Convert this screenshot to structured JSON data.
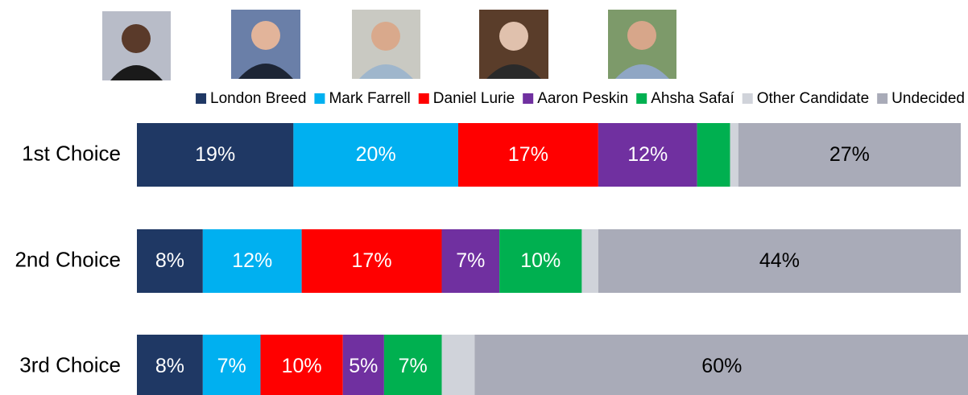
{
  "chart_data": {
    "type": "stacked-bar-horizontal",
    "categories": [
      "1st Choice",
      "2nd Choice",
      "3rd Choice"
    ],
    "xlim": [
      0,
      100
    ],
    "legend": "top",
    "series": [
      {
        "name": "London Breed",
        "color": "#1f3864",
        "values": [
          19,
          8,
          8
        ],
        "value_labels": [
          "19%",
          "8%",
          "8%"
        ]
      },
      {
        "name": "Mark Farrell",
        "color": "#00b0f0",
        "values": [
          20,
          12,
          7
        ],
        "value_labels": [
          "20%",
          "12%",
          "7%"
        ]
      },
      {
        "name": "Daniel Lurie",
        "color": "#ff0000",
        "values": [
          17,
          17,
          10
        ],
        "value_labels": [
          "17%",
          "17%",
          "10%"
        ]
      },
      {
        "name": "Aaron Peskin",
        "color": "#7030a0",
        "values": [
          12,
          7,
          5
        ],
        "value_labels": [
          "12%",
          "7%",
          "5%"
        ]
      },
      {
        "name": "Ahsha Safaí",
        "color": "#00b050",
        "values": [
          4,
          10,
          7
        ],
        "value_labels": [
          null,
          "10%",
          "7%"
        ]
      },
      {
        "name": "Other Candidate",
        "color": "#d0d3da",
        "values": [
          1,
          2,
          4
        ]
      },
      {
        "name": "Undecided",
        "color": "#a9abb8",
        "values": [
          27,
          44,
          60
        ],
        "value_labels": [
          "27%",
          "44%",
          "60%"
        ]
      }
    ]
  }
}
